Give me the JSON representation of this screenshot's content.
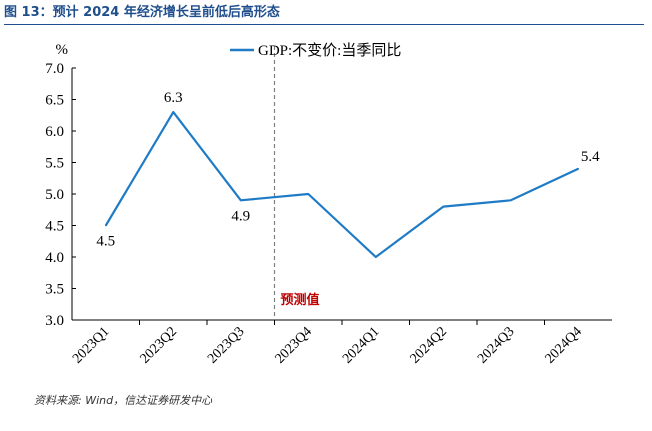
{
  "figure_title": "图 13：预计 2024 年经济增长呈前低后高形态",
  "source_note": "资料来源: Wind，信达证券研发中心",
  "colors": {
    "title": "#1f4e8c",
    "line": "#1f7bc6",
    "divider": "#7f7f7f",
    "forecast_label": "#c00000"
  },
  "chart_data": {
    "type": "line",
    "categories": [
      "2023Q1",
      "2023Q2",
      "2023Q3",
      "2023Q4",
      "2024Q1",
      "2024Q2",
      "2024Q3",
      "2024Q4"
    ],
    "series": [
      {
        "name": "GDP:不变价:当季同比",
        "values": [
          4.5,
          6.3,
          4.9,
          5.0,
          4.0,
          4.8,
          4.9,
          5.4
        ]
      }
    ],
    "data_labels": [
      {
        "index": 0,
        "text": "4.5"
      },
      {
        "index": 1,
        "text": "6.3"
      },
      {
        "index": 2,
        "text": "4.9"
      },
      {
        "index": 7,
        "text": "5.4"
      }
    ],
    "y_unit": "%",
    "ylim": [
      3.0,
      7.0
    ],
    "yticks": [
      "3.0",
      "3.5",
      "4.0",
      "4.5",
      "5.0",
      "5.5",
      "6.0",
      "6.5",
      "7.0"
    ],
    "forecast_divider_after_index": 2,
    "forecast_label": "预测值",
    "legend_position": "top",
    "grid": false
  }
}
